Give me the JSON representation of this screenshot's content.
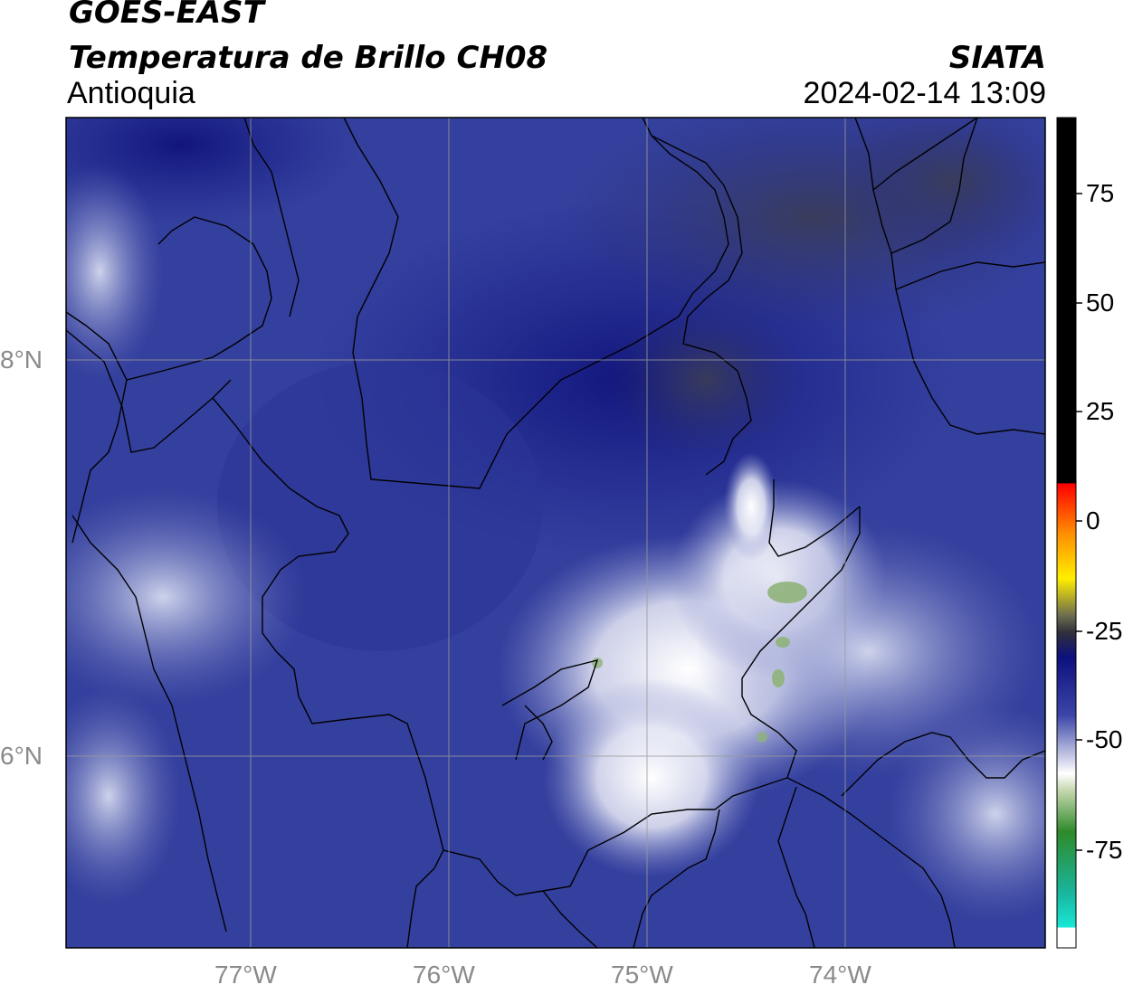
{
  "header": {
    "satellite": "GOES-EAST",
    "product": "Temperatura de Brillo CH08",
    "region": "Antioquia",
    "agency": "SIATA",
    "datetime": "2024-02-14 13:09"
  },
  "map": {
    "lat_labels": [
      "8°N",
      "6°N"
    ],
    "lon_labels": [
      "77°W",
      "76°W",
      "75°W",
      "74°W"
    ],
    "gridline_color": "#9a9a9a",
    "border_color": "#000000",
    "base_color": "#2e3a98",
    "cold_color": "#ffffff",
    "warm_color": "#14197a"
  },
  "colorbar": {
    "ticks": [
      "75",
      "50",
      "25",
      "0",
      "-25",
      "-50",
      "-75"
    ],
    "colors": {
      "black": "#000000",
      "red": "#ff2a00",
      "orange": "#ff8c00",
      "yellow": "#ffee00",
      "gray": "#3c3c46",
      "navy": "#10137e",
      "blue": "#3c46a8",
      "white": "#ffffff",
      "green": "#2f8a2a",
      "cyan": "#19e8d6"
    }
  }
}
